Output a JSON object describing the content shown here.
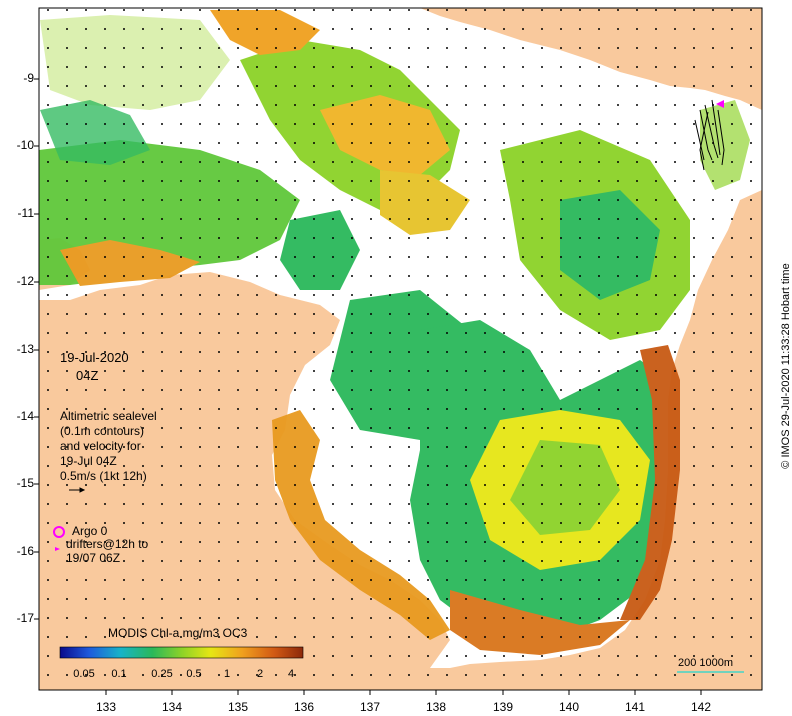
{
  "map": {
    "date": "19-Jul-2020",
    "time": "04Z",
    "legend_lines": [
      "Altimetric sealevel",
      "(0.1m contours)",
      "and velocity for",
      "19-Jul 04Z",
      "0.5m/s (1kt 12h)"
    ],
    "argo_label": "Argo 0",
    "drifter_lines": [
      "drifters@12h to",
      "19/07 06Z"
    ],
    "colorbar_title": "MODIS Chl-a mg/m3 OC3",
    "colorbar_ticks": [
      "0.05",
      "0.1",
      "0.25",
      "0.5",
      "1",
      "2",
      "4"
    ],
    "scale_label": "200  1000m",
    "credit": "© IMOS 29-Jul-2020 11:33:28 Hobart time",
    "lat_ticks": [
      "-9",
      "-10",
      "-11",
      "-12",
      "-13",
      "-14",
      "-15",
      "-16",
      "-17"
    ],
    "lon_ticks": [
      "133",
      "134",
      "135",
      "136",
      "137",
      "138",
      "139",
      "140",
      "141",
      "142"
    ],
    "colors": {
      "land": "#f9c99d",
      "argo": "#ff00ff",
      "colorbar": [
        "#0a0a8c",
        "#1e5adc",
        "#18b4c8",
        "#2ab85a",
        "#8cd228",
        "#e6e614",
        "#f0a01e",
        "#d25a14",
        "#8c280a"
      ]
    }
  }
}
